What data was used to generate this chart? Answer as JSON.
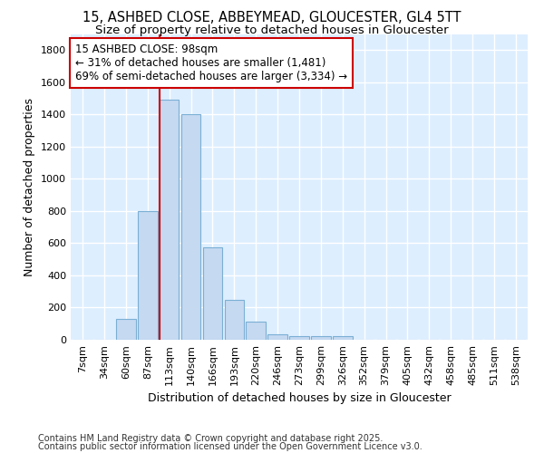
{
  "title1": "15, ASHBED CLOSE, ABBEYMEAD, GLOUCESTER, GL4 5TT",
  "title2": "Size of property relative to detached houses in Gloucester",
  "xlabel": "Distribution of detached houses by size in Gloucester",
  "ylabel": "Number of detached properties",
  "categories": [
    "7sqm",
    "34sqm",
    "60sqm",
    "87sqm",
    "113sqm",
    "140sqm",
    "166sqm",
    "193sqm",
    "220sqm",
    "246sqm",
    "273sqm",
    "299sqm",
    "326sqm",
    "352sqm",
    "379sqm",
    "405sqm",
    "432sqm",
    "458sqm",
    "485sqm",
    "511sqm",
    "538sqm"
  ],
  "values": [
    0,
    0,
    130,
    800,
    1490,
    1400,
    575,
    250,
    110,
    35,
    25,
    20,
    20,
    0,
    0,
    0,
    0,
    0,
    0,
    0,
    0
  ],
  "bar_color": "#c5d9f1",
  "bar_edge_color": "#7bafd4",
  "figure_bg": "#ffffff",
  "axes_bg": "#ddeeff",
  "grid_color": "#ffffff",
  "annotation_text": "15 ASHBED CLOSE: 98sqm\n← 31% of detached houses are smaller (1,481)\n69% of semi-detached houses are larger (3,334) →",
  "annotation_box_facecolor": "#ffffff",
  "annotation_box_edgecolor": "#cc0000",
  "vline_color": "#cc0000",
  "vline_x_index": 3.57,
  "ylim": [
    0,
    1900
  ],
  "yticks": [
    0,
    200,
    400,
    600,
    800,
    1000,
    1200,
    1400,
    1600,
    1800
  ],
  "footer1": "Contains HM Land Registry data © Crown copyright and database right 2025.",
  "footer2": "Contains public sector information licensed under the Open Government Licence v3.0.",
  "title_fontsize": 10.5,
  "subtitle_fontsize": 9.5,
  "axis_label_fontsize": 9,
  "tick_fontsize": 8,
  "annotation_fontsize": 8.5,
  "footer_fontsize": 7
}
